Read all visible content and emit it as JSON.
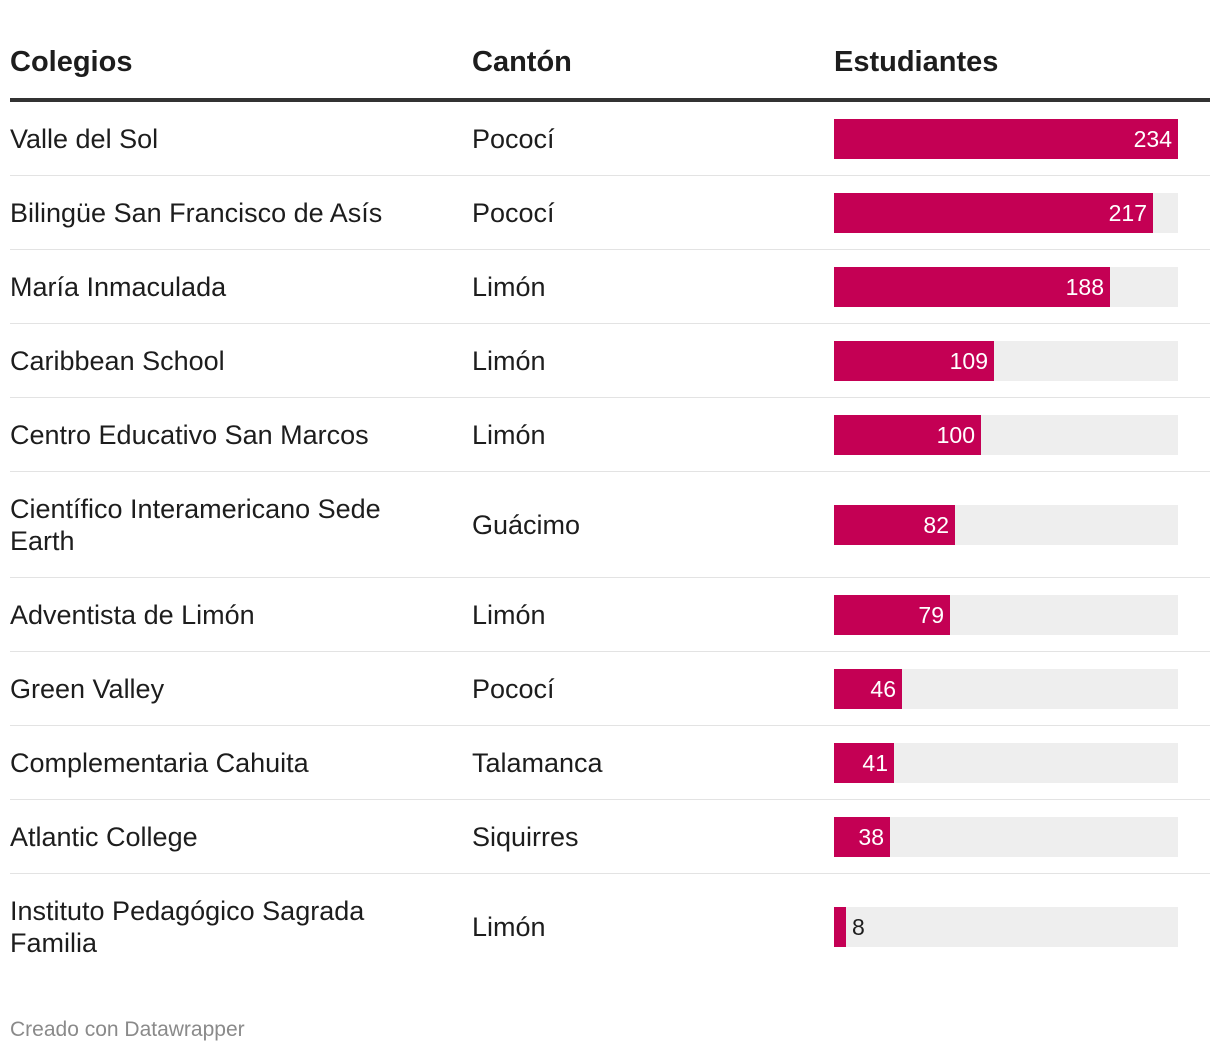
{
  "chart_data": {
    "type": "table",
    "columns": [
      "Colegios",
      "Cantón",
      "Estudiantes"
    ],
    "value_max": 234,
    "bar_color": "#c40054",
    "track_color": "#eeeeee",
    "rows": [
      {
        "colegio": "Valle del Sol",
        "canton": "Pococí",
        "estudiantes": 234
      },
      {
        "colegio": "Bilingüe San Francisco de Asís",
        "canton": "Pococí",
        "estudiantes": 217
      },
      {
        "colegio": "María Inmaculada",
        "canton": "Limón",
        "estudiantes": 188
      },
      {
        "colegio": "Caribbean School",
        "canton": "Limón",
        "estudiantes": 109
      },
      {
        "colegio": "Centro Educativo San Marcos",
        "canton": "Limón",
        "estudiantes": 100
      },
      {
        "colegio": "Científico Interamericano Sede Earth",
        "canton": "Guácimo",
        "estudiantes": 82
      },
      {
        "colegio": "Adventista de Limón",
        "canton": "Limón",
        "estudiantes": 79
      },
      {
        "colegio": "Green Valley",
        "canton": "Pococí",
        "estudiantes": 46
      },
      {
        "colegio": "Complementaria Cahuita",
        "canton": "Talamanca",
        "estudiantes": 41
      },
      {
        "colegio": "Atlantic College",
        "canton": "Siquirres",
        "estudiantes": 38
      },
      {
        "colegio": "Instituto Pedagógico Sagrada Familia",
        "canton": "Limón",
        "estudiantes": 8
      }
    ]
  },
  "footer": {
    "credit": "Creado con Datawrapper"
  }
}
